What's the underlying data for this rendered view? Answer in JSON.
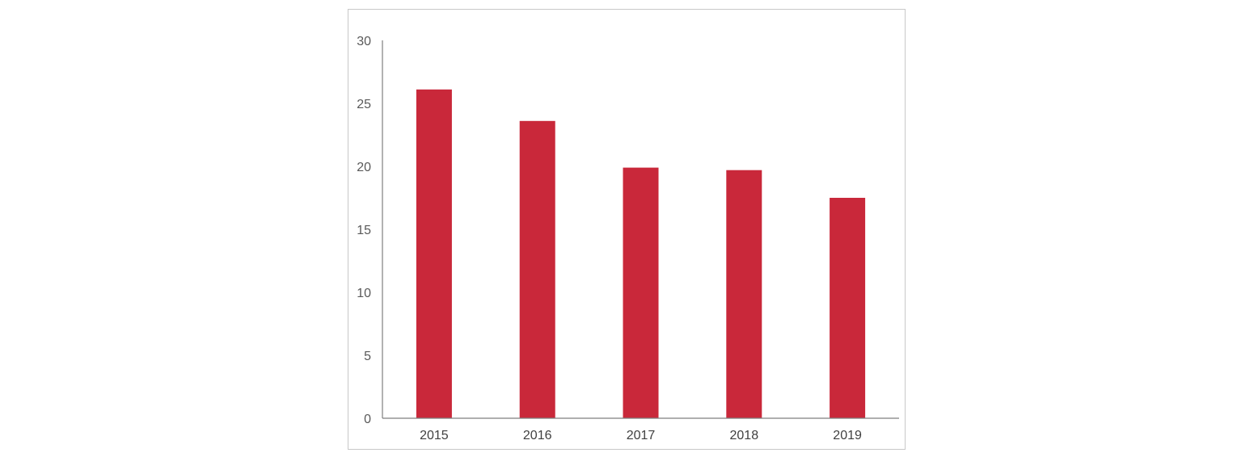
{
  "chart_data": {
    "type": "bar",
    "categories": [
      "2015",
      "2016",
      "2017",
      "2018",
      "2019"
    ],
    "values": [
      26.1,
      23.6,
      19.9,
      19.7,
      17.5
    ],
    "title": "",
    "xlabel": "",
    "ylabel": "",
    "ylim": [
      0,
      30
    ],
    "yticks": [
      "0",
      "5",
      "10",
      "15",
      "20",
      "25",
      "30"
    ],
    "grid": false,
    "legend": "none",
    "bar_color": "#c9283a",
    "axis_color": "#7f7f7f"
  }
}
